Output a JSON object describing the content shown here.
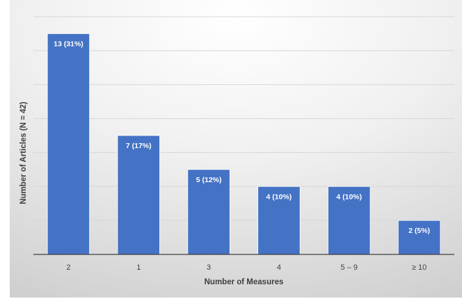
{
  "chart_data": {
    "type": "bar",
    "categories": [
      "2",
      "1",
      "3",
      "4",
      "5 – 9",
      "≥ 10"
    ],
    "values": [
      13,
      7,
      5,
      4,
      4,
      2
    ],
    "data_labels": [
      "13 (31%)",
      "7 (17%)",
      "5 (12%)",
      "4 (10%)",
      "4 (10%)",
      "2 (5%)"
    ],
    "xlabel": "Number of Measures",
    "ylabel": "Number of Articles (N = 42)",
    "ylim": [
      0,
      14
    ],
    "y_gridlines": [
      0,
      2,
      4,
      6,
      8,
      10,
      12,
      14
    ],
    "grid": true,
    "y_tick_labels_shown": false,
    "legend": "none",
    "colors": {
      "bar": "#4472C4",
      "bar_edge": "#ffffff",
      "gridline": "#d6d6d6",
      "axis": "#404040",
      "background_light": "#ffffff",
      "background_dark": "#cfcfcf"
    }
  }
}
